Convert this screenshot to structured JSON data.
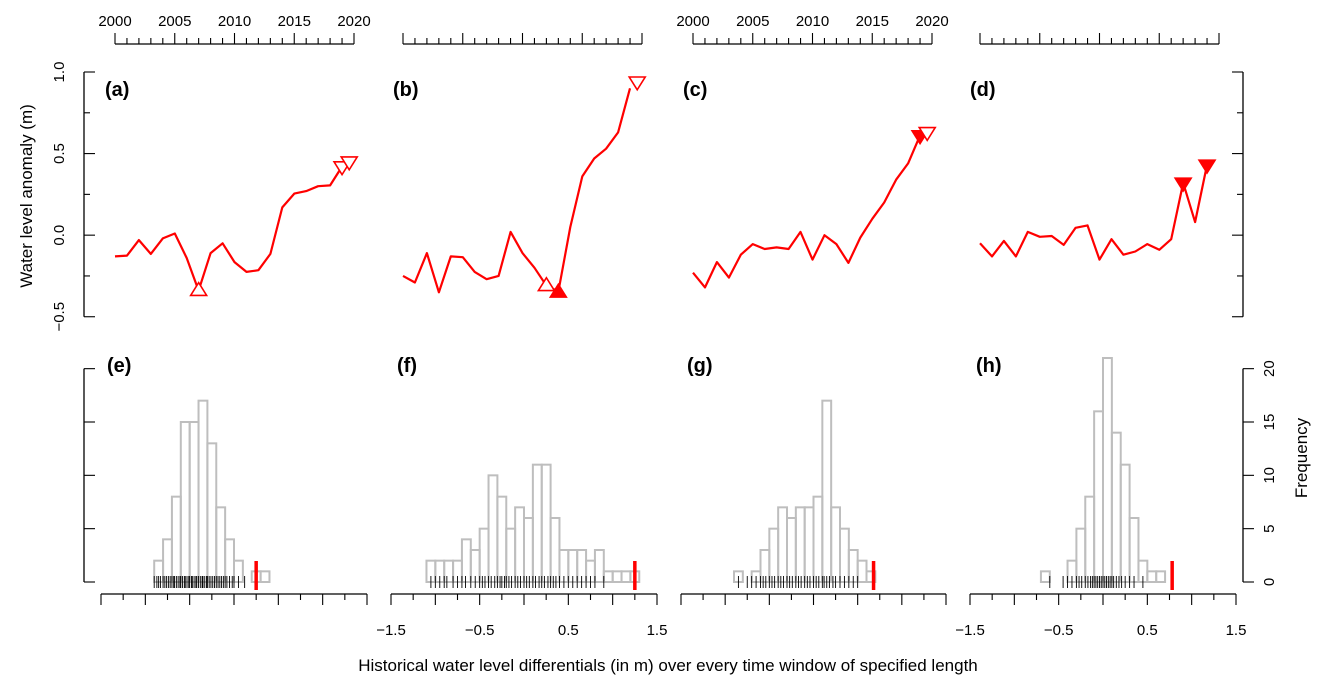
{
  "figure": {
    "y_axis_label": "Water level anomaly (m)",
    "x_axis_label": "Historical water level differentials (in m) over every time window of specified length",
    "freq_axis_label": "Frequency"
  },
  "colors": {
    "series": "#ff0000",
    "histogram": "#bebebe",
    "rug": "#000000",
    "axis": "#000000"
  },
  "chart_data": [
    {
      "panel": "(a)",
      "type": "line",
      "x_ticks": [
        2000,
        2005,
        2010,
        2015,
        2020
      ],
      "x_tick_labels": [
        "2000",
        "2005",
        "2010",
        "2015",
        "2020"
      ],
      "y_ticks": [
        -0.5,
        0.0,
        0.5,
        1.0
      ],
      "y_tick_labels": [
        "−0.5",
        "0.0",
        "0.5",
        "1.0"
      ],
      "xlim": [
        2000,
        2020
      ],
      "ylim": [
        -0.52,
        1.0
      ],
      "x": [
        2000,
        2001,
        2002,
        2003,
        2004,
        2005,
        2006,
        2007,
        2008,
        2009,
        2010,
        2011,
        2012,
        2013,
        2014,
        2015,
        2016,
        2017,
        2018,
        2019
      ],
      "y": [
        -0.13,
        -0.125,
        -0.03,
        -0.115,
        -0.02,
        0.01,
        -0.14,
        -0.34,
        -0.11,
        -0.05,
        -0.165,
        -0.225,
        -0.215,
        -0.115,
        0.17,
        0.255,
        0.27,
        0.3,
        0.305,
        0.42
      ],
      "markers": [
        {
          "x": 2007.0,
          "y": -0.34,
          "shape": "up",
          "filled": false
        },
        {
          "x": 2019.0,
          "y": 0.42,
          "shape": "down",
          "filled": false
        },
        {
          "x": 2019.6,
          "y": 0.45,
          "shape": "down",
          "filled": false
        }
      ]
    },
    {
      "panel": "(b)",
      "type": "line",
      "x_ticks": [
        2000,
        2005,
        2010,
        2015,
        2020
      ],
      "x_tick_labels": [],
      "xlim": [
        2000,
        2020
      ],
      "ylim": [
        -0.52,
        1.0
      ],
      "x": [
        2000,
        2001,
        2002,
        2003,
        2004,
        2005,
        2006,
        2007,
        2008,
        2009,
        2010,
        2011,
        2012,
        2013,
        2014,
        2015,
        2016,
        2017,
        2018,
        2019
      ],
      "y": [
        -0.25,
        -0.29,
        -0.11,
        -0.35,
        -0.13,
        -0.135,
        -0.225,
        -0.27,
        -0.25,
        0.02,
        -0.11,
        -0.2,
        -0.31,
        -0.345,
        0.05,
        0.36,
        0.47,
        0.53,
        0.63,
        0.9
      ],
      "markers": [
        {
          "x": 2012.0,
          "y": -0.31,
          "shape": "up",
          "filled": false
        },
        {
          "x": 2013.0,
          "y": -0.35,
          "shape": "up",
          "filled": true
        },
        {
          "x": 2019.6,
          "y": 0.94,
          "shape": "down",
          "filled": false
        }
      ]
    },
    {
      "panel": "(c)",
      "type": "line",
      "x_ticks": [
        2000,
        2005,
        2010,
        2015,
        2020
      ],
      "x_tick_labels": [
        "2000",
        "2005",
        "2010",
        "2015",
        "2020"
      ],
      "xlim": [
        2000,
        2020
      ],
      "ylim": [
        -0.52,
        1.0
      ],
      "x": [
        2000,
        2001,
        2002,
        2003,
        2004,
        2005,
        2006,
        2007,
        2008,
        2009,
        2010,
        2011,
        2012,
        2013,
        2014,
        2015,
        2016,
        2017,
        2018,
        2019
      ],
      "y": [
        -0.23,
        -0.32,
        -0.165,
        -0.26,
        -0.12,
        -0.055,
        -0.085,
        -0.075,
        -0.085,
        0.02,
        -0.15,
        0.0,
        -0.055,
        -0.17,
        -0.015,
        0.1,
        0.2,
        0.34,
        0.44,
        0.61
      ],
      "markers": [
        {
          "x": 2019.0,
          "y": 0.61,
          "shape": "down",
          "filled": true
        },
        {
          "x": 2019.6,
          "y": 0.63,
          "shape": "down",
          "filled": false
        }
      ]
    },
    {
      "panel": "(d)",
      "type": "line",
      "x_ticks": [
        2000,
        2005,
        2010,
        2015,
        2020
      ],
      "x_tick_labels": [],
      "y_ticks": [
        -0.5,
        0.0,
        0.5,
        1.0
      ],
      "y_tick_labels": [],
      "xlim": [
        2000,
        2020
      ],
      "ylim": [
        -0.52,
        1.0
      ],
      "x": [
        2000,
        2001,
        2002,
        2003,
        2004,
        2005,
        2006,
        2007,
        2008,
        2009,
        2010,
        2011,
        2012,
        2013,
        2014,
        2015,
        2016,
        2017,
        2018,
        2019
      ],
      "y": [
        -0.05,
        -0.13,
        -0.035,
        -0.13,
        0.02,
        -0.01,
        -0.005,
        -0.06,
        0.045,
        0.06,
        -0.15,
        -0.025,
        -0.12,
        -0.1,
        -0.055,
        -0.09,
        -0.025,
        0.32,
        0.08,
        0.43
      ],
      "markers": [
        {
          "x": 2017.0,
          "y": 0.32,
          "shape": "down",
          "filled": true
        },
        {
          "x": 2019.0,
          "y": 0.43,
          "shape": "down",
          "filled": true
        }
      ]
    },
    {
      "panel": "(e)",
      "type": "bar",
      "x_ticks": [
        -1.5,
        -1.0,
        -0.5,
        0.0,
        0.5,
        1.0,
        1.5
      ],
      "x_tick_labels": [],
      "xlim": [
        -1.5,
        1.5
      ],
      "ylim": [
        0,
        21
      ],
      "bin_width": 0.1,
      "bin_start": -0.9,
      "counts": [
        2,
        4,
        8,
        15,
        15,
        17,
        13,
        7,
        4,
        2,
        0,
        1,
        1
      ],
      "rug": [
        -0.9,
        -0.87,
        -0.85,
        -0.83,
        -0.8,
        -0.78,
        -0.76,
        -0.74,
        -0.72,
        -0.7,
        -0.68,
        -0.67,
        -0.65,
        -0.63,
        -0.61,
        -0.6,
        -0.58,
        -0.56,
        -0.55,
        -0.53,
        -0.51,
        -0.5,
        -0.48,
        -0.47,
        -0.45,
        -0.43,
        -0.42,
        -0.4,
        -0.38,
        -0.36,
        -0.35,
        -0.33,
        -0.31,
        -0.3,
        -0.28,
        -0.26,
        -0.24,
        -0.22,
        -0.2,
        -0.18,
        -0.16,
        -0.14,
        -0.12,
        -0.1,
        -0.08,
        -0.05,
        -0.02,
        0.0,
        0.05,
        0.12
      ],
      "observed": 0.25
    },
    {
      "panel": "(f)",
      "type": "bar",
      "x_ticks": [
        -1.5,
        -1.0,
        -0.5,
        0.0,
        0.5,
        1.0,
        1.5
      ],
      "x_tick_labels": [
        "−1.5",
        "",
        "−0.5",
        "",
        "0.5",
        "",
        "1.5"
      ],
      "xlim": [
        -1.5,
        1.5
      ],
      "ylim": [
        0,
        21
      ],
      "bin_width": 0.1,
      "bin_start": -1.1,
      "counts": [
        2,
        2,
        2,
        2,
        4,
        3,
        5,
        10,
        8,
        5,
        7,
        6,
        11,
        11,
        6,
        3,
        3,
        3,
        2,
        3,
        1,
        1,
        1,
        1
      ],
      "rug": [
        -1.05,
        -1.0,
        -0.95,
        -0.9,
        -0.87,
        -0.8,
        -0.75,
        -0.7,
        -0.66,
        -0.6,
        -0.55,
        -0.5,
        -0.47,
        -0.44,
        -0.4,
        -0.37,
        -0.33,
        -0.3,
        -0.27,
        -0.25,
        -0.22,
        -0.2,
        -0.17,
        -0.14,
        -0.1,
        -0.07,
        -0.04,
        0.0,
        0.03,
        0.06,
        0.1,
        0.13,
        0.17,
        0.2,
        0.23,
        0.27,
        0.3,
        0.33,
        0.36,
        0.4,
        0.45,
        0.5,
        0.55,
        0.6,
        0.65,
        0.7,
        0.75,
        0.8,
        0.9
      ],
      "observed": 1.25
    },
    {
      "panel": "(g)",
      "type": "bar",
      "x_ticks": [
        -1.5,
        -1.0,
        -0.5,
        0.0,
        0.5,
        1.0,
        1.5
      ],
      "x_tick_labels": [],
      "xlim": [
        -1.5,
        1.5
      ],
      "ylim": [
        0,
        21
      ],
      "bin_width": 0.1,
      "bin_start": -0.9,
      "counts": [
        1,
        0,
        1,
        3,
        5,
        7,
        6,
        7,
        7,
        8,
        17,
        7,
        5,
        3,
        2,
        1
      ],
      "rug": [
        -0.85,
        -0.75,
        -0.7,
        -0.65,
        -0.6,
        -0.57,
        -0.54,
        -0.5,
        -0.47,
        -0.44,
        -0.4,
        -0.37,
        -0.34,
        -0.3,
        -0.27,
        -0.24,
        -0.2,
        -0.17,
        -0.14,
        -0.1,
        -0.07,
        -0.04,
        0.0,
        0.03,
        0.06,
        0.1,
        0.12,
        0.15,
        0.18,
        0.22,
        0.25,
        0.3,
        0.35,
        0.4,
        0.45,
        0.5
      ],
      "observed": 0.68
    },
    {
      "panel": "(h)",
      "type": "bar",
      "x_ticks": [
        -1.5,
        -1.0,
        -0.5,
        0.0,
        0.5,
        1.0,
        1.5
      ],
      "x_tick_labels": [
        "−1.5",
        "",
        "−0.5",
        "",
        "0.5",
        "",
        "1.5"
      ],
      "xlim": [
        -1.5,
        1.5
      ],
      "ylim": [
        0,
        21
      ],
      "bin_width": 0.1,
      "bin_start": -0.7,
      "counts": [
        1,
        0,
        0,
        2,
        5,
        8,
        16,
        21,
        14,
        11,
        6,
        2,
        1,
        1
      ],
      "rug": [
        -0.6,
        -0.45,
        -0.4,
        -0.35,
        -0.3,
        -0.27,
        -0.24,
        -0.2,
        -0.17,
        -0.14,
        -0.12,
        -0.1,
        -0.08,
        -0.06,
        -0.04,
        -0.02,
        0.0,
        0.02,
        0.04,
        0.06,
        0.08,
        0.1,
        0.12,
        0.15,
        0.18,
        0.21,
        0.25,
        0.3,
        0.35,
        0.45
      ],
      "observed": 0.78
    }
  ],
  "freq_axis": {
    "ticks": [
      0,
      5,
      10,
      15,
      20
    ],
    "tick_labels": [
      "0",
      "5",
      "10",
      "15",
      "20"
    ]
  }
}
